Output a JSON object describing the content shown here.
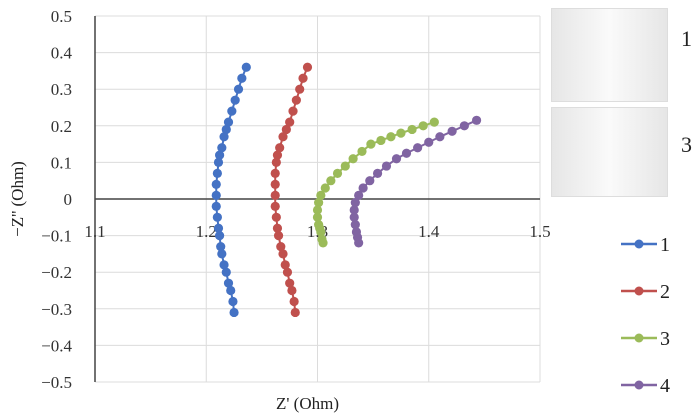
{
  "chart_data": {
    "type": "scatter",
    "title": "",
    "xlabel": "Z' (Ohm)",
    "ylabel": "−Z'' (Ohm)",
    "xlim": [
      1.1,
      1.5
    ],
    "ylim": [
      -0.5,
      0.5
    ],
    "x_ticks": [
      "1.1",
      "1.2",
      "1.3",
      "1.4",
      "1.5"
    ],
    "y_ticks": [
      "0.5",
      "0.4",
      "0.3",
      "0.2",
      "0.1",
      "0",
      "−0.1",
      "−0.2",
      "−0.3",
      "−0.4",
      "−0.5"
    ],
    "grid": true,
    "legend_position": "right-bottom",
    "series": [
      {
        "name": "1",
        "color": "#4472c4",
        "x": [
          1.236,
          1.232,
          1.229,
          1.226,
          1.223,
          1.22,
          1.218,
          1.216,
          1.214,
          1.212,
          1.211,
          1.21,
          1.209,
          1.209,
          1.209,
          1.21,
          1.211,
          1.212,
          1.213,
          1.214,
          1.216,
          1.218,
          1.22,
          1.222,
          1.224,
          1.225
        ],
        "y": [
          0.36,
          0.33,
          0.3,
          0.27,
          0.24,
          0.21,
          0.19,
          0.17,
          0.14,
          0.12,
          0.1,
          0.07,
          0.04,
          0.01,
          -0.02,
          -0.05,
          -0.08,
          -0.1,
          -0.13,
          -0.15,
          -0.18,
          -0.2,
          -0.23,
          -0.25,
          -0.28,
          -0.31
        ]
      },
      {
        "name": "2",
        "color": "#c0504d",
        "x": [
          1.291,
          1.287,
          1.284,
          1.281,
          1.278,
          1.275,
          1.272,
          1.269,
          1.266,
          1.264,
          1.263,
          1.262,
          1.262,
          1.262,
          1.262,
          1.263,
          1.264,
          1.265,
          1.267,
          1.269,
          1.271,
          1.273,
          1.275,
          1.277,
          1.279,
          1.28
        ],
        "y": [
          0.36,
          0.33,
          0.3,
          0.27,
          0.24,
          0.21,
          0.19,
          0.17,
          0.14,
          0.12,
          0.1,
          0.07,
          0.04,
          0.01,
          -0.02,
          -0.05,
          -0.08,
          -0.1,
          -0.13,
          -0.15,
          -0.18,
          -0.2,
          -0.23,
          -0.25,
          -0.28,
          -0.31
        ]
      },
      {
        "name": "3",
        "color": "#9bbb59",
        "x": [
          1.405,
          1.395,
          1.385,
          1.375,
          1.366,
          1.357,
          1.348,
          1.34,
          1.332,
          1.325,
          1.318,
          1.312,
          1.307,
          1.303,
          1.301,
          1.3,
          1.3,
          1.301,
          1.302,
          1.303,
          1.304,
          1.305
        ],
        "y": [
          0.21,
          0.2,
          0.19,
          0.18,
          0.17,
          0.16,
          0.15,
          0.13,
          0.11,
          0.09,
          0.07,
          0.05,
          0.03,
          0.01,
          -0.01,
          -0.03,
          -0.05,
          -0.07,
          -0.08,
          -0.09,
          -0.11,
          -0.12
        ],
        "note": "approx"
      },
      {
        "name": "4",
        "color": "#8064a2",
        "x": [
          1.443,
          1.432,
          1.421,
          1.41,
          1.4,
          1.39,
          1.38,
          1.371,
          1.362,
          1.354,
          1.347,
          1.341,
          1.337,
          1.334,
          1.333,
          1.333,
          1.334,
          1.335,
          1.336,
          1.337
        ],
        "y": [
          0.215,
          0.2,
          0.185,
          0.17,
          0.155,
          0.14,
          0.125,
          0.11,
          0.09,
          0.07,
          0.05,
          0.03,
          0.01,
          -0.01,
          -0.03,
          -0.05,
          -0.07,
          -0.09,
          -0.105,
          -0.12
        ],
        "note": "approx"
      }
    ]
  },
  "insets": [
    {
      "label": "1"
    },
    {
      "label": "3"
    }
  ]
}
